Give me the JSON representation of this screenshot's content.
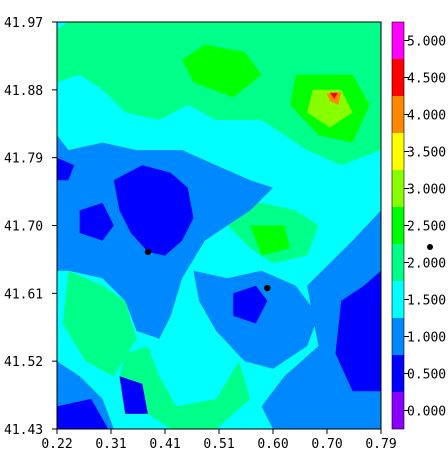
{
  "chart_data": {
    "type": "heatmap",
    "title": "",
    "xlabel": "",
    "ylabel": "",
    "xlim": [
      0.22,
      0.79
    ],
    "ylim": [
      41.43,
      41.97
    ],
    "x_ticks": [
      "0.22",
      "0.31",
      "0.41",
      "0.51",
      "0.60",
      "0.70",
      "0.79"
    ],
    "y_ticks": [
      "41.97",
      "41.88",
      "41.79",
      "41.70",
      "41.61",
      "41.52",
      "41.43"
    ],
    "colorbar": {
      "levels": [
        "0.000",
        "0.500",
        "1.000",
        "1.500",
        "2.000",
        "2.500",
        "3.000",
        "3.500",
        "4.000",
        "4.500",
        "5.000"
      ],
      "colors": [
        "#8800ff",
        "#0000ff",
        "#0088ff",
        "#00ffff",
        "#00ff88",
        "#00ff00",
        "#88ff00",
        "#ffff00",
        "#ff8800",
        "#ff0000",
        "#ff00ff"
      ]
    },
    "markers": [
      {
        "x": 0.38,
        "y": 41.665
      },
      {
        "x": 0.59,
        "y": 41.617
      }
    ],
    "regions": [
      {
        "level": 3,
        "points": [
          [
            0.22,
            41.43
          ],
          [
            0.79,
            41.43
          ],
          [
            0.79,
            41.97
          ],
          [
            0.22,
            41.97
          ]
        ]
      },
      {
        "level": 4,
        "points": [
          [
            0.24,
            41.97
          ],
          [
            0.79,
            41.97
          ],
          [
            0.79,
            41.8
          ],
          [
            0.72,
            41.78
          ],
          [
            0.66,
            41.8
          ],
          [
            0.58,
            41.84
          ],
          [
            0.5,
            41.84
          ],
          [
            0.45,
            41.86
          ],
          [
            0.4,
            41.84
          ],
          [
            0.34,
            41.85
          ],
          [
            0.3,
            41.88
          ],
          [
            0.26,
            41.9
          ],
          [
            0.22,
            41.89
          ],
          [
            0.22,
            41.96
          ]
        ]
      },
      {
        "level": 5,
        "points": [
          [
            0.48,
            41.94
          ],
          [
            0.55,
            41.93
          ],
          [
            0.58,
            41.9
          ],
          [
            0.53,
            41.87
          ],
          [
            0.46,
            41.89
          ],
          [
            0.44,
            41.92
          ]
        ]
      },
      {
        "level": 5,
        "points": [
          [
            0.64,
            41.9
          ],
          [
            0.74,
            41.9
          ],
          [
            0.77,
            41.86
          ],
          [
            0.74,
            41.81
          ],
          [
            0.68,
            41.82
          ],
          [
            0.63,
            41.86
          ]
        ]
      },
      {
        "level": 6,
        "points": [
          [
            0.67,
            41.88
          ],
          [
            0.72,
            41.88
          ],
          [
            0.74,
            41.85
          ],
          [
            0.7,
            41.83
          ],
          [
            0.66,
            41.85
          ]
        ]
      },
      {
        "level": 8,
        "points": [
          [
            0.695,
            41.875
          ],
          [
            0.72,
            41.877
          ],
          [
            0.715,
            41.86
          ],
          [
            0.7,
            41.865
          ]
        ]
      },
      {
        "level": 9,
        "points": [
          [
            0.7,
            41.876
          ],
          [
            0.714,
            41.876
          ],
          [
            0.708,
            41.868
          ]
        ]
      },
      {
        "level": 4,
        "points": [
          [
            0.24,
            41.64
          ],
          [
            0.3,
            41.62
          ],
          [
            0.34,
            41.6
          ],
          [
            0.36,
            41.55
          ],
          [
            0.32,
            41.5
          ],
          [
            0.27,
            41.52
          ],
          [
            0.23,
            41.57
          ]
        ]
      },
      {
        "level": 4,
        "points": [
          [
            0.34,
            41.53
          ],
          [
            0.38,
            41.54
          ],
          [
            0.4,
            41.5
          ],
          [
            0.43,
            41.46
          ],
          [
            0.5,
            41.47
          ],
          [
            0.54,
            41.52
          ],
          [
            0.56,
            41.47
          ],
          [
            0.5,
            41.43
          ],
          [
            0.42,
            41.43
          ],
          [
            0.36,
            41.46
          ],
          [
            0.33,
            41.5
          ]
        ]
      },
      {
        "level": 4,
        "points": [
          [
            0.52,
            41.74
          ],
          [
            0.58,
            41.73
          ],
          [
            0.64,
            41.72
          ],
          [
            0.68,
            41.7
          ],
          [
            0.66,
            41.66
          ],
          [
            0.6,
            41.65
          ],
          [
            0.56,
            41.67
          ],
          [
            0.52,
            41.7
          ]
        ]
      },
      {
        "level": 5,
        "points": [
          [
            0.56,
            41.7
          ],
          [
            0.62,
            41.7
          ],
          [
            0.63,
            41.67
          ],
          [
            0.58,
            41.66
          ]
        ]
      },
      {
        "level": 2,
        "points": [
          [
            0.22,
            41.82
          ],
          [
            0.24,
            41.8
          ],
          [
            0.3,
            41.81
          ],
          [
            0.36,
            41.8
          ],
          [
            0.44,
            41.8
          ],
          [
            0.5,
            41.78
          ],
          [
            0.56,
            41.76
          ],
          [
            0.6,
            41.75
          ],
          [
            0.56,
            41.72
          ],
          [
            0.52,
            41.7
          ],
          [
            0.48,
            41.68
          ],
          [
            0.44,
            41.63
          ],
          [
            0.42,
            41.58
          ],
          [
            0.4,
            41.55
          ],
          [
            0.36,
            41.56
          ],
          [
            0.34,
            41.6
          ],
          [
            0.3,
            41.63
          ],
          [
            0.24,
            41.64
          ],
          [
            0.22,
            41.64
          ]
        ]
      },
      {
        "level": 2,
        "points": [
          [
            0.46,
            41.64
          ],
          [
            0.52,
            41.63
          ],
          [
            0.58,
            41.64
          ],
          [
            0.64,
            41.62
          ],
          [
            0.68,
            41.58
          ],
          [
            0.66,
            41.54
          ],
          [
            0.6,
            41.51
          ],
          [
            0.55,
            41.52
          ],
          [
            0.5,
            41.56
          ],
          [
            0.47,
            41.6
          ]
        ]
      },
      {
        "level": 2,
        "points": [
          [
            0.66,
            41.62
          ],
          [
            0.74,
            41.68
          ],
          [
            0.79,
            41.72
          ],
          [
            0.79,
            41.43
          ],
          [
            0.6,
            41.43
          ],
          [
            0.58,
            41.46
          ],
          [
            0.62,
            41.5
          ],
          [
            0.68,
            41.54
          ]
        ]
      },
      {
        "level": 2,
        "points": [
          [
            0.22,
            41.52
          ],
          [
            0.26,
            41.5
          ],
          [
            0.3,
            41.47
          ],
          [
            0.32,
            41.43
          ],
          [
            0.22,
            41.43
          ]
        ]
      },
      {
        "level": 1,
        "points": [
          [
            0.32,
            41.76
          ],
          [
            0.37,
            41.78
          ],
          [
            0.42,
            41.77
          ],
          [
            0.45,
            41.75
          ],
          [
            0.46,
            41.71
          ],
          [
            0.44,
            41.68
          ],
          [
            0.41,
            41.66
          ],
          [
            0.38,
            41.665
          ],
          [
            0.35,
            41.69
          ],
          [
            0.33,
            41.72
          ]
        ]
      },
      {
        "level": 1,
        "points": [
          [
            0.26,
            41.72
          ],
          [
            0.3,
            41.73
          ],
          [
            0.32,
            41.7
          ],
          [
            0.3,
            41.68
          ],
          [
            0.26,
            41.69
          ]
        ]
      },
      {
        "level": 1,
        "points": [
          [
            0.53,
            41.61
          ],
          [
            0.57,
            41.62
          ],
          [
            0.59,
            41.6
          ],
          [
            0.57,
            41.57
          ],
          [
            0.53,
            41.58
          ]
        ]
      },
      {
        "level": 1,
        "points": [
          [
            0.72,
            41.6
          ],
          [
            0.76,
            41.62
          ],
          [
            0.79,
            41.64
          ],
          [
            0.79,
            41.48
          ],
          [
            0.74,
            41.48
          ],
          [
            0.71,
            41.53
          ]
        ]
      },
      {
        "level": 1,
        "points": [
          [
            0.22,
            41.46
          ],
          [
            0.28,
            41.47
          ],
          [
            0.31,
            41.43
          ],
          [
            0.22,
            41.43
          ]
        ]
      },
      {
        "level": 1,
        "points": [
          [
            0.33,
            41.5
          ],
          [
            0.37,
            41.49
          ],
          [
            0.38,
            41.45
          ],
          [
            0.34,
            41.45
          ]
        ]
      },
      {
        "level": 1,
        "points": [
          [
            0.22,
            41.79
          ],
          [
            0.25,
            41.78
          ],
          [
            0.24,
            41.76
          ],
          [
            0.22,
            41.76
          ]
        ]
      }
    ]
  }
}
